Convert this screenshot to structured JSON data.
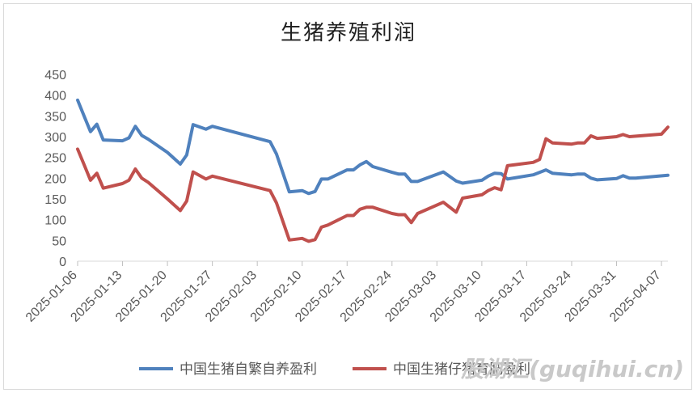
{
  "chart_data": {
    "type": "line",
    "title": "生猪养殖利润",
    "xlabel": "",
    "ylabel": "",
    "ylim": [
      0,
      450
    ],
    "yticks": [
      0,
      50,
      100,
      150,
      200,
      250,
      300,
      350,
      400,
      450
    ],
    "x_start": "2025-01-06",
    "x_end": "2025-04-08",
    "xtick_labels": [
      "2025-01-06",
      "2025-01-13",
      "2025-01-20",
      "2025-01-27",
      "2025-02-03",
      "2025-02-10",
      "2025-02-17",
      "2025-02-24",
      "2025-03-03",
      "2025-03-10",
      "2025-03-17",
      "2025-03-24",
      "2025-03-31",
      "2025-04-07"
    ],
    "grid": false,
    "legend_position": "bottom",
    "series": [
      {
        "name": "中国生猪自繁自养盈利",
        "color": "#4f81bd",
        "points": [
          [
            "2025-01-06",
            388
          ],
          [
            "2025-01-07",
            350
          ],
          [
            "2025-01-08",
            312
          ],
          [
            "2025-01-09",
            330
          ],
          [
            "2025-01-10",
            292
          ],
          [
            "2025-01-13",
            290
          ],
          [
            "2025-01-14",
            297
          ],
          [
            "2025-01-15",
            325
          ],
          [
            "2025-01-16",
            303
          ],
          [
            "2025-01-17",
            294
          ],
          [
            "2025-01-20",
            262
          ],
          [
            "2025-01-22",
            234
          ],
          [
            "2025-01-23",
            256
          ],
          [
            "2025-01-24",
            329
          ],
          [
            "2025-01-26",
            318
          ],
          [
            "2025-01-27",
            325
          ],
          [
            "2025-02-05",
            288
          ],
          [
            "2025-02-06",
            258
          ],
          [
            "2025-02-08",
            167
          ],
          [
            "2025-02-10",
            170
          ],
          [
            "2025-02-11",
            163
          ],
          [
            "2025-02-12",
            168
          ],
          [
            "2025-02-13",
            198
          ],
          [
            "2025-02-14",
            198
          ],
          [
            "2025-02-17",
            220
          ],
          [
            "2025-02-18",
            220
          ],
          [
            "2025-02-19",
            232
          ],
          [
            "2025-02-20",
            240
          ],
          [
            "2025-02-21",
            228
          ],
          [
            "2025-02-24",
            214
          ],
          [
            "2025-02-25",
            210
          ],
          [
            "2025-02-26",
            210
          ],
          [
            "2025-02-27",
            192
          ],
          [
            "2025-02-28",
            192
          ],
          [
            "2025-03-04",
            215
          ],
          [
            "2025-03-06",
            193
          ],
          [
            "2025-03-07",
            188
          ],
          [
            "2025-03-10",
            195
          ],
          [
            "2025-03-11",
            205
          ],
          [
            "2025-03-12",
            212
          ],
          [
            "2025-03-13",
            211
          ],
          [
            "2025-03-14",
            198
          ],
          [
            "2025-03-18",
            208
          ],
          [
            "2025-03-20",
            220
          ],
          [
            "2025-03-21",
            212
          ],
          [
            "2025-03-24",
            208
          ],
          [
            "2025-03-25",
            210
          ],
          [
            "2025-03-26",
            210
          ],
          [
            "2025-03-27",
            200
          ],
          [
            "2025-03-28",
            196
          ],
          [
            "2025-03-31",
            199
          ],
          [
            "2025-04-01",
            206
          ],
          [
            "2025-04-02",
            200
          ],
          [
            "2025-04-03",
            200
          ],
          [
            "2025-04-08",
            207
          ]
        ]
      },
      {
        "name": "中国生猪仔猪育肥盈利",
        "color": "#c0504d",
        "points": [
          [
            "2025-01-06",
            270
          ],
          [
            "2025-01-07",
            233
          ],
          [
            "2025-01-08",
            195
          ],
          [
            "2025-01-09",
            212
          ],
          [
            "2025-01-10",
            176
          ],
          [
            "2025-01-13",
            187
          ],
          [
            "2025-01-14",
            195
          ],
          [
            "2025-01-15",
            222
          ],
          [
            "2025-01-16",
            200
          ],
          [
            "2025-01-17",
            190
          ],
          [
            "2025-01-20",
            150
          ],
          [
            "2025-01-22",
            122
          ],
          [
            "2025-01-23",
            145
          ],
          [
            "2025-01-24",
            215
          ],
          [
            "2025-01-26",
            198
          ],
          [
            "2025-01-27",
            205
          ],
          [
            "2025-02-05",
            170
          ],
          [
            "2025-02-06",
            140
          ],
          [
            "2025-02-08",
            51
          ],
          [
            "2025-02-10",
            55
          ],
          [
            "2025-02-11",
            48
          ],
          [
            "2025-02-12",
            52
          ],
          [
            "2025-02-13",
            82
          ],
          [
            "2025-02-14",
            87
          ],
          [
            "2025-02-17",
            110
          ],
          [
            "2025-02-18",
            110
          ],
          [
            "2025-02-19",
            125
          ],
          [
            "2025-02-20",
            130
          ],
          [
            "2025-02-21",
            130
          ],
          [
            "2025-02-24",
            115
          ],
          [
            "2025-02-25",
            112
          ],
          [
            "2025-02-26",
            112
          ],
          [
            "2025-02-27",
            93
          ],
          [
            "2025-02-28",
            115
          ],
          [
            "2025-03-04",
            142
          ],
          [
            "2025-03-06",
            118
          ],
          [
            "2025-03-07",
            152
          ],
          [
            "2025-03-10",
            160
          ],
          [
            "2025-03-11",
            170
          ],
          [
            "2025-03-12",
            177
          ],
          [
            "2025-03-13",
            172
          ],
          [
            "2025-03-14",
            230
          ],
          [
            "2025-03-18",
            238
          ],
          [
            "2025-03-19",
            245
          ],
          [
            "2025-03-20",
            295
          ],
          [
            "2025-03-21",
            285
          ],
          [
            "2025-03-24",
            282
          ],
          [
            "2025-03-25",
            285
          ],
          [
            "2025-03-26",
            285
          ],
          [
            "2025-03-27",
            302
          ],
          [
            "2025-03-28",
            296
          ],
          [
            "2025-03-31",
            300
          ],
          [
            "2025-04-01",
            305
          ],
          [
            "2025-04-02",
            300
          ],
          [
            "2025-04-07",
            306
          ],
          [
            "2025-04-08",
            323
          ]
        ]
      }
    ]
  },
  "watermark": "股湖汇(guqihui.cn)"
}
